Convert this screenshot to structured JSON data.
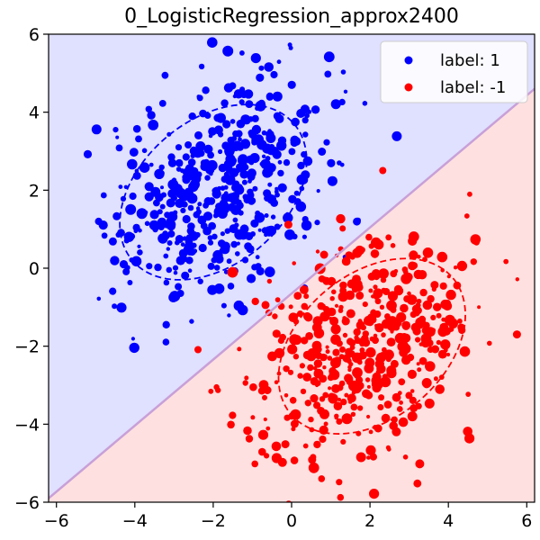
{
  "chart_data": {
    "type": "scatter",
    "title": "0_LogisticRegression_approx2400",
    "xlabel": "",
    "ylabel": "",
    "xlim": [
      -6.2,
      6.2
    ],
    "ylim": [
      -6,
      6
    ],
    "xticks": [
      -6,
      -4,
      -2,
      0,
      2,
      4,
      6
    ],
    "yticks": [
      -6,
      -4,
      -2,
      0,
      2,
      4,
      6
    ],
    "xtick_labels": [
      "−6",
      "−4",
      "−2",
      "0",
      "2",
      "4",
      "6"
    ],
    "ytick_labels": [
      "−6",
      "−4",
      "−2",
      "0",
      "2",
      "4",
      "6"
    ],
    "grid": false,
    "legend_position": "top-right",
    "decision_boundary": {
      "x": [
        -6.2,
        6.2
      ],
      "y": [
        -5.9,
        4.6
      ],
      "color": "#c8a0d8"
    },
    "regions": {
      "label_1_color": "#e0e0ff",
      "label_-1_color": "#ffe0e0"
    },
    "ellipses": [
      {
        "label": "label: 1",
        "center": [
          -2.0,
          1.95
        ],
        "rx": 2.7,
        "ry": 1.85,
        "angle_deg": 40,
        "color": "#0000ff"
      },
      {
        "label": "label: -1",
        "center": [
          2.05,
          -2.0
        ],
        "rx": 2.7,
        "ry": 1.85,
        "angle_deg": 40,
        "color": "#ff0000"
      }
    ],
    "series": [
      {
        "name": "label: 1",
        "color": "#0000ff",
        "center": [
          -2.0,
          2.0
        ],
        "std": [
          1.45,
          1.45
        ],
        "rho": 0.3,
        "n": 500,
        "seed": 17
      },
      {
        "name": "label: -1",
        "color": "#ff0000",
        "center": [
          2.0,
          -2.0
        ],
        "std": [
          1.45,
          1.45
        ],
        "rho": 0.3,
        "n": 500,
        "seed": 91
      }
    ]
  }
}
